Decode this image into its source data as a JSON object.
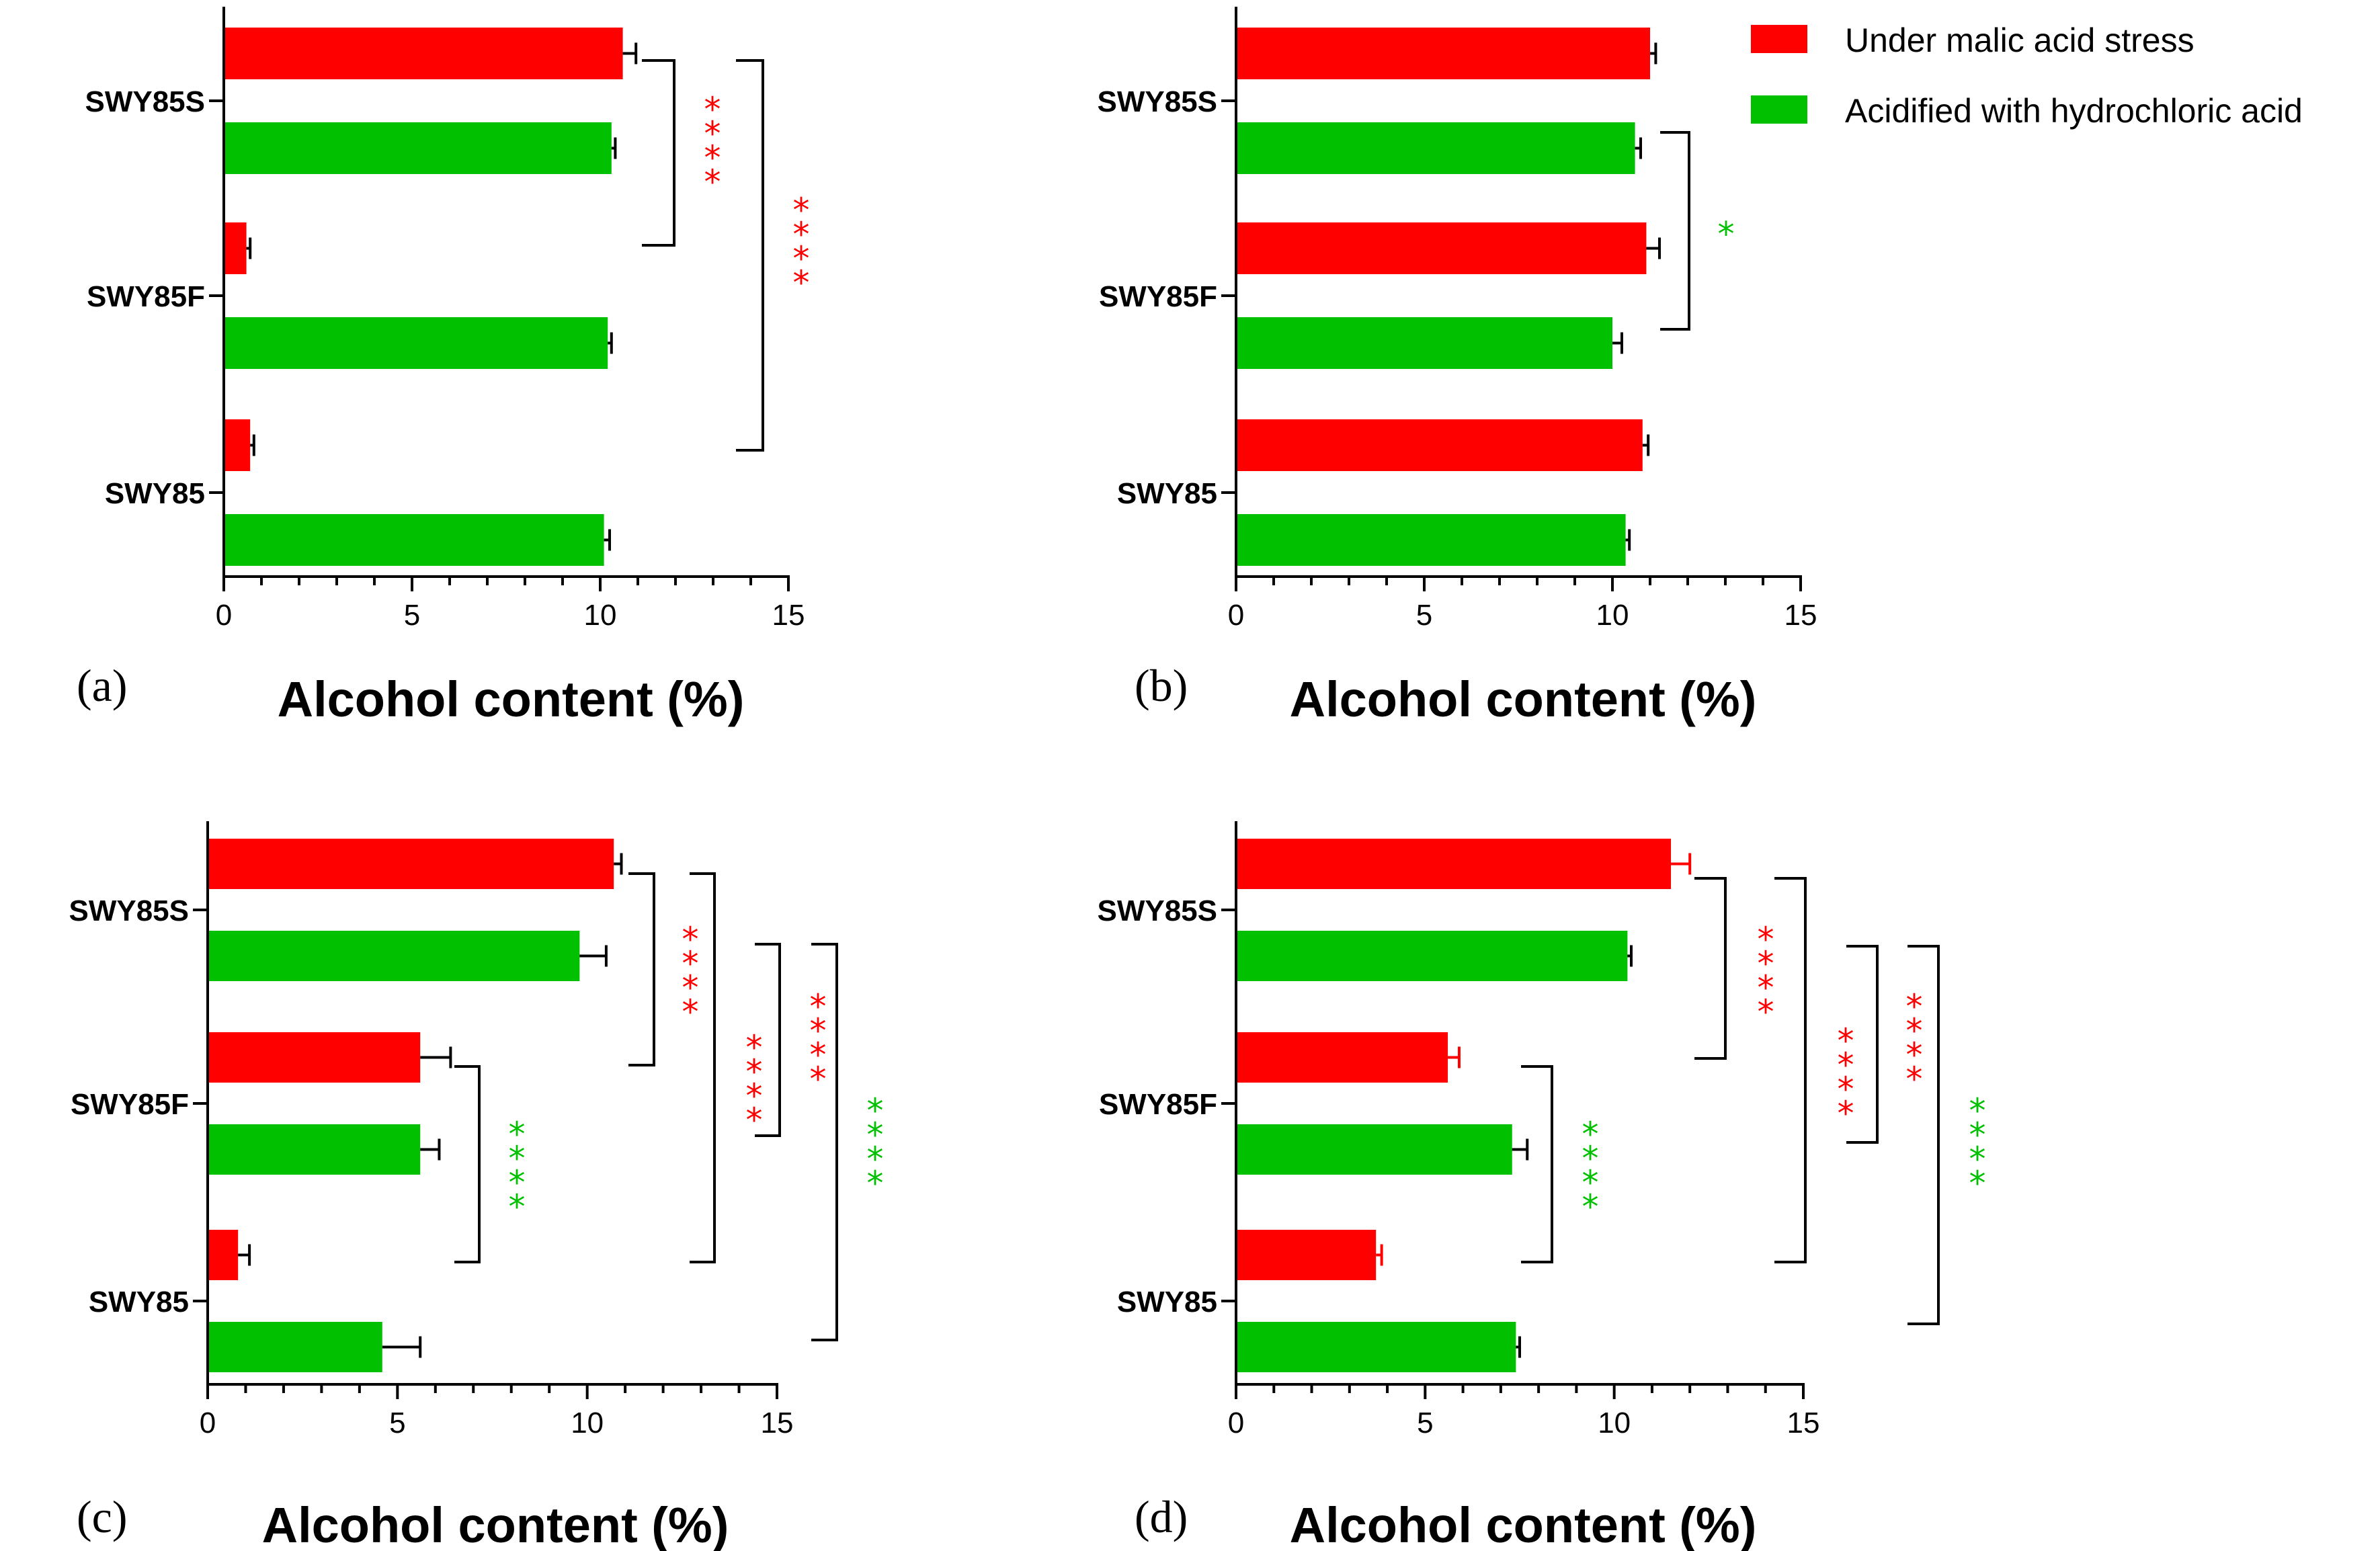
{
  "colors": {
    "malic": "#ff0000",
    "hcl": "#00c000"
  },
  "legend": [
    {
      "label": "Under malic acid stress",
      "color": "#ff0000"
    },
    {
      "label": "Acidified with hydrochloric acid",
      "color": "#00c000"
    }
  ],
  "chart_data": [
    {
      "panel": "(a)",
      "type": "bar",
      "orientation": "horizontal",
      "xlabel": "Alcohol content (%)",
      "xlim": [
        0,
        15
      ],
      "xticks": [
        0,
        5,
        10,
        15
      ],
      "categories": [
        "SWY85S",
        "SWY85F",
        "SWY85"
      ],
      "series": [
        {
          "name": "Under malic acid stress",
          "values": [
            10.6,
            0.6,
            0.7
          ],
          "errors": [
            0.35,
            0.1,
            0.1
          ]
        },
        {
          "name": "Acidified with hydrochloric acid",
          "values": [
            10.3,
            10.2,
            10.1
          ],
          "errors": [
            0.1,
            0.1,
            0.15
          ]
        }
      ],
      "significance": [
        {
          "label": "****",
          "color": "#ff0000"
        },
        {
          "label": "****",
          "color": "#ff0000"
        }
      ]
    },
    {
      "panel": "(b)",
      "type": "bar",
      "orientation": "horizontal",
      "xlabel": "Alcohol content (%)",
      "xlim": [
        0,
        15
      ],
      "xticks": [
        0,
        5,
        10,
        15
      ],
      "categories": [
        "SWY85S",
        "SWY85F",
        "SWY85"
      ],
      "series": [
        {
          "name": "Under malic acid stress",
          "values": [
            11.0,
            10.9,
            10.8
          ],
          "errors": [
            0.15,
            0.35,
            0.15
          ]
        },
        {
          "name": "Acidified with hydrochloric acid",
          "values": [
            10.6,
            10.0,
            10.35
          ],
          "errors": [
            0.15,
            0.25,
            0.1
          ]
        }
      ],
      "significance": [
        {
          "label": "*",
          "color": "#00c000"
        }
      ]
    },
    {
      "panel": "(c)",
      "type": "bar",
      "orientation": "horizontal",
      "xlabel": "Alcohol content (%)",
      "xlim": [
        0,
        15
      ],
      "xticks": [
        0,
        5,
        10,
        15
      ],
      "categories": [
        "SWY85S",
        "SWY85F",
        "SWY85"
      ],
      "series": [
        {
          "name": "Under malic acid stress",
          "values": [
            10.7,
            5.6,
            0.8
          ],
          "errors": [
            0.2,
            0.8,
            0.3
          ]
        },
        {
          "name": "Acidified with hydrochloric acid",
          "values": [
            9.8,
            5.6,
            4.6
          ],
          "errors": [
            0.7,
            0.5,
            1.0
          ]
        }
      ],
      "significance": [
        {
          "label": "****",
          "color": "#ff0000"
        },
        {
          "label": "****",
          "color": "#ff0000"
        },
        {
          "label": "****",
          "color": "#ff0000"
        },
        {
          "label": "****",
          "color": "#00c000"
        },
        {
          "label": "****",
          "color": "#00c000"
        }
      ]
    },
    {
      "panel": "(d)",
      "type": "bar",
      "orientation": "horizontal",
      "xlabel": "Alcohol content (%)",
      "xlim": [
        0,
        15
      ],
      "xticks": [
        0,
        5,
        10,
        15
      ],
      "categories": [
        "SWY85S",
        "SWY85F",
        "SWY85"
      ],
      "series": [
        {
          "name": "Under malic acid stress",
          "values": [
            11.5,
            5.6,
            3.7
          ],
          "errors": [
            0.5,
            0.3,
            0.15
          ]
        },
        {
          "name": "Acidified with hydrochloric acid",
          "values": [
            10.35,
            7.3,
            7.4
          ],
          "errors": [
            0.1,
            0.4,
            0.1
          ]
        }
      ],
      "significance": [
        {
          "label": "****",
          "color": "#ff0000"
        },
        {
          "label": "****",
          "color": "#ff0000"
        },
        {
          "label": "****",
          "color": "#ff0000"
        },
        {
          "label": "****",
          "color": "#00c000"
        },
        {
          "label": "****",
          "color": "#00c000"
        }
      ]
    }
  ]
}
